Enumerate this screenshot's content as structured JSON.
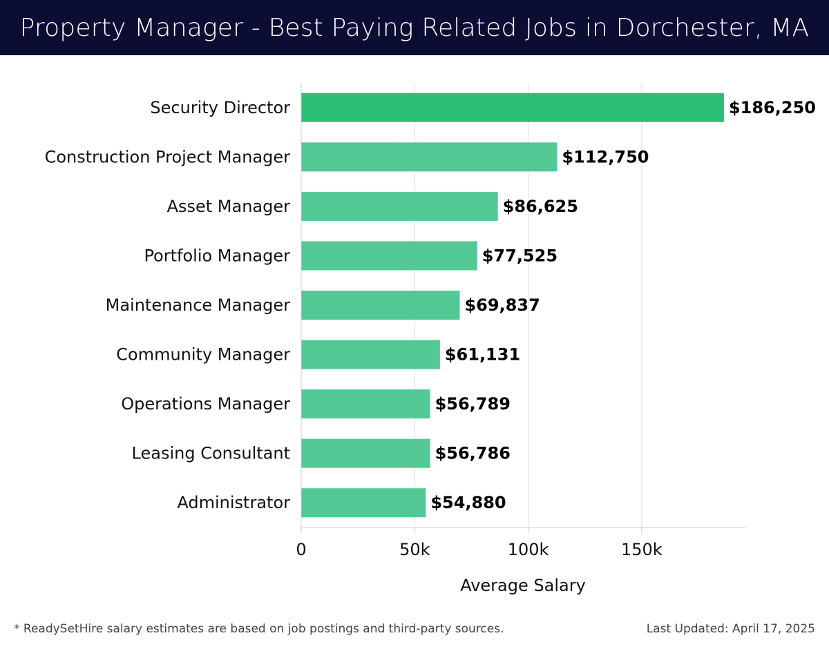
{
  "page_title": "Property Manager - Best Paying Related Jobs in Dorchester, MA",
  "footer": {
    "note": "* ReadySetHire salary estimates are based on job postings and third-party sources.",
    "last_updated": "Last Updated: April 17, 2025"
  },
  "colors": {
    "header_bg": "#0b0d33",
    "bar_top": "#2bbf76",
    "bar": "#52c994"
  },
  "chart_data": {
    "type": "bar",
    "orientation": "horizontal",
    "title": "Property Manager - Best Paying Related Jobs in Dorchester, MA",
    "xlabel": "Average Salary",
    "ylabel": "",
    "xlim": [
      0,
      196000
    ],
    "xticks": [
      0,
      50000,
      100000,
      150000
    ],
    "xtick_labels": [
      "0",
      "50k",
      "100k",
      "150k"
    ],
    "grid": true,
    "categories": [
      "Security Director",
      "Construction Project Manager",
      "Asset Manager",
      "Portfolio Manager",
      "Maintenance Manager",
      "Community Manager",
      "Operations Manager",
      "Leasing Consultant",
      "Administrator"
    ],
    "values": [
      186250,
      112750,
      86625,
      77525,
      69837,
      61131,
      56789,
      56786,
      54880
    ],
    "value_labels": [
      "$186,250",
      "$112,750",
      "$86,625",
      "$77,525",
      "$69,837",
      "$61,131",
      "$56,789",
      "$56,786",
      "$54,880"
    ]
  }
}
